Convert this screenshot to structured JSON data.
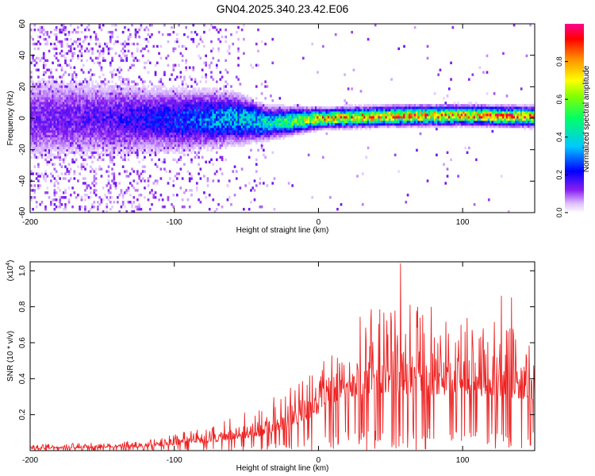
{
  "title": "GN04.2025.340.23.42.E06",
  "chart_data": [
    {
      "type": "heatmap",
      "name": "spectrogram",
      "xlabel": "Height of straight line (km)",
      "ylabel": "Frequency (Hz)",
      "xlim": [
        -200,
        150
      ],
      "ylim": [
        -60,
        60
      ],
      "xticks": [
        -200,
        -100,
        0,
        100
      ],
      "yticks": [
        -60,
        -40,
        -20,
        0,
        20,
        40,
        60
      ],
      "colorbar": {
        "label": "Normalized spectral amplitude",
        "range": [
          0,
          1
        ],
        "ticks": [
          0.0,
          0.2,
          0.4,
          0.6,
          0.8
        ],
        "tick_labels": [
          "0.0",
          "0.2",
          "0.4",
          "0.6",
          "0.8"
        ],
        "colormap": [
          "#ffffff",
          "#d9b3ff",
          "#7a00e6",
          "#0000ff",
          "#00bfff",
          "#00ff66",
          "#ffff00",
          "#ff8000",
          "#ff0000",
          "#ff0090"
        ]
      },
      "ridge": [
        {
          "x": -200,
          "center": 0,
          "width": 14
        },
        {
          "x": -150,
          "center": 0,
          "width": 12
        },
        {
          "x": -100,
          "center": -1,
          "width": 10
        },
        {
          "x": -60,
          "center": 0,
          "width": 8
        },
        {
          "x": -35,
          "center": -3,
          "width": 5
        },
        {
          "x": 0,
          "center": 0,
          "width": 3
        },
        {
          "x": 50,
          "center": 1.5,
          "width": 3
        },
        {
          "x": 100,
          "center": 2,
          "width": 3
        },
        {
          "x": 150,
          "center": 1,
          "width": 3
        }
      ],
      "peak_amplitude_profile": [
        {
          "x": -200,
          "amplitude": 0.15
        },
        {
          "x": -150,
          "amplitude": 0.18
        },
        {
          "x": -110,
          "amplitude": 0.25
        },
        {
          "x": -80,
          "amplitude": 0.35
        },
        {
          "x": -50,
          "amplitude": 0.45
        },
        {
          "x": -30,
          "amplitude": 0.5
        },
        {
          "x": 0,
          "amplitude": 0.85
        },
        {
          "x": 50,
          "amplitude": 0.9
        },
        {
          "x": 100,
          "amplitude": 0.9
        },
        {
          "x": 150,
          "amplitude": 0.92
        }
      ]
    },
    {
      "type": "line",
      "name": "snr",
      "xlabel": "Height of straight line (km)",
      "ylabel": "SNR (10 * v/v)",
      "y_multiplier_label": "(x10",
      "y_multiplier_exponent": "4",
      "y_multiplier_suffix": ")",
      "xlim": [
        -200,
        150
      ],
      "ylim": [
        0,
        1.05
      ],
      "xticks": [
        -200,
        -100,
        0,
        100
      ],
      "yticks": [
        0.2,
        0.4,
        0.6,
        0.8,
        1.0
      ],
      "color": "#ee2222",
      "envelope": [
        {
          "x": -200,
          "base": 0.01,
          "spread": 0.025
        },
        {
          "x": -150,
          "base": 0.015,
          "spread": 0.03
        },
        {
          "x": -120,
          "base": 0.02,
          "spread": 0.04
        },
        {
          "x": -100,
          "base": 0.03,
          "spread": 0.06
        },
        {
          "x": -70,
          "base": 0.05,
          "spread": 0.1
        },
        {
          "x": -40,
          "base": 0.08,
          "spread": 0.17
        },
        {
          "x": -20,
          "base": 0.13,
          "spread": 0.22
        },
        {
          "x": 0,
          "base": 0.2,
          "spread": 0.25
        },
        {
          "x": 20,
          "base": 0.3,
          "spread": 0.45
        },
        {
          "x": 50,
          "base": 0.32,
          "spread": 0.55
        },
        {
          "x": 100,
          "base": 0.3,
          "spread": 0.45
        },
        {
          "x": 130,
          "base": 0.3,
          "spread": 0.42
        },
        {
          "x": 150,
          "base": 0.28,
          "spread": 0.35
        }
      ],
      "notable_points": [
        {
          "x": 57,
          "y": 1.04
        },
        {
          "x": 127,
          "y": 0.86
        },
        {
          "x": 134,
          "y": 0.85
        },
        {
          "x": 147,
          "y": 0.03
        }
      ]
    }
  ]
}
